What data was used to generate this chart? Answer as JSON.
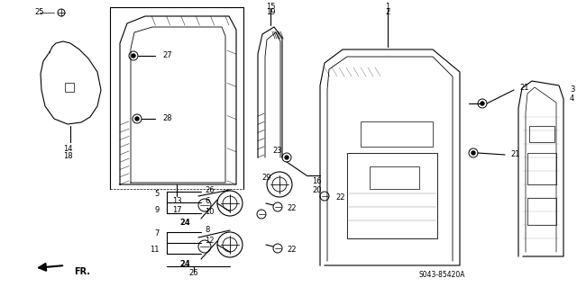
{
  "bg_color": "#ffffff",
  "diagram_code": "S043-85420A"
}
